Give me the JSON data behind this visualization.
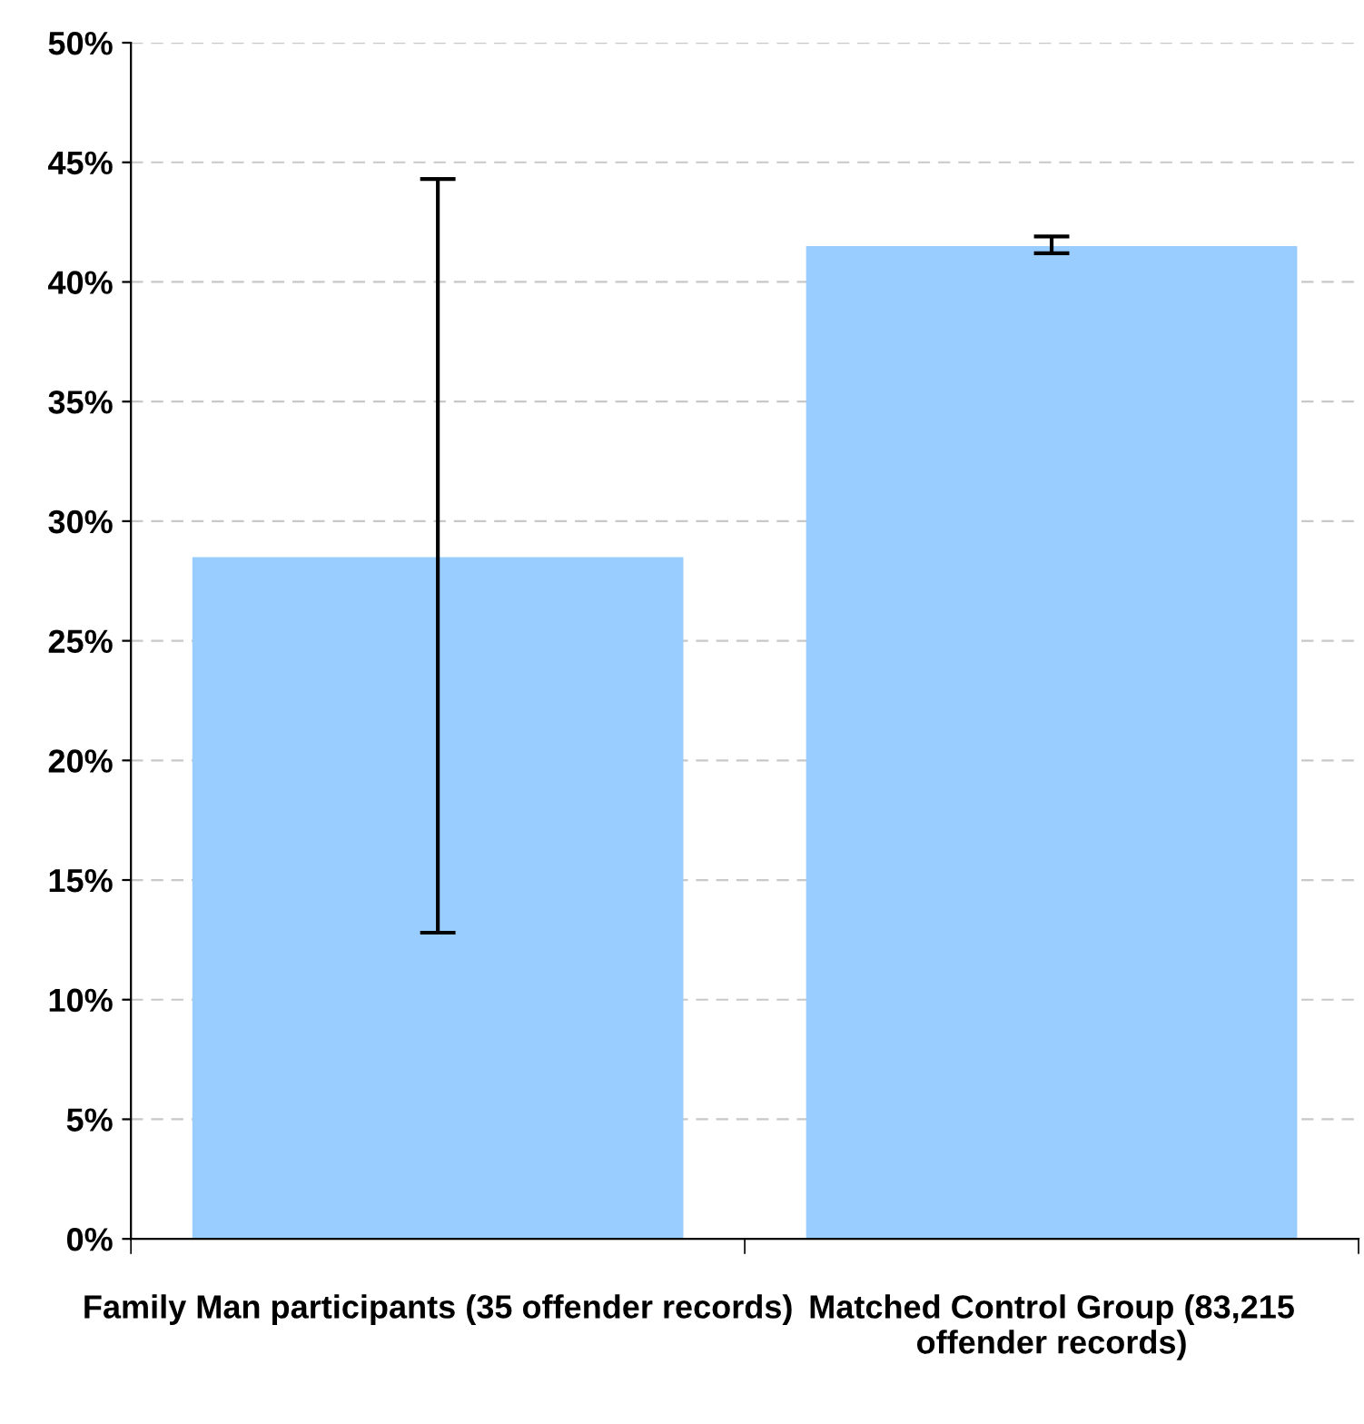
{
  "chart_data": {
    "type": "bar",
    "categories": [
      "Family Man participants (35 offender records)",
      "Matched Control Group (83,215 offender records)"
    ],
    "values": [
      28.5,
      41.5
    ],
    "color": "#99ccff",
    "errors": [
      [
        12.8,
        44.3
      ],
      [
        41.2,
        41.9
      ]
    ],
    "ylim": [
      0,
      50
    ],
    "yticks": [
      {
        "value": 0,
        "label": "0%"
      },
      {
        "value": 5,
        "label": "5%"
      },
      {
        "value": 10,
        "label": "10%"
      },
      {
        "value": 15,
        "label": "15%"
      },
      {
        "value": 20,
        "label": "20%"
      },
      {
        "value": 25,
        "label": "25%"
      },
      {
        "value": 30,
        "label": "30%"
      },
      {
        "value": 35,
        "label": "35%"
      },
      {
        "value": 40,
        "label": "40%"
      },
      {
        "value": 45,
        "label": "45%"
      },
      {
        "value": 50,
        "label": "50%"
      }
    ],
    "grid": "y"
  }
}
